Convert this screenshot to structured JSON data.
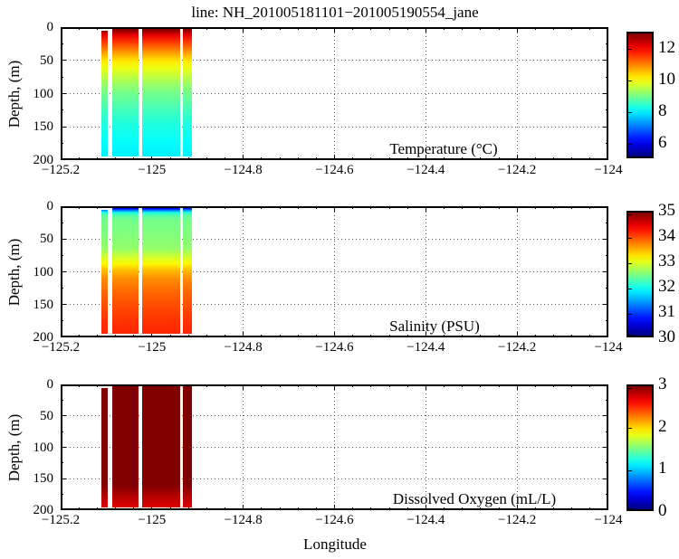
{
  "figure": {
    "title": "line: NH_201005181101−201005190554_jane",
    "xlabel": "Longitude",
    "ylabel": "Depth, (m)",
    "background_color": "#ffffff",
    "axis_color": "#000000"
  },
  "chart_data": [
    {
      "type": "heatmap",
      "series_label": "Temperature (°C)",
      "colormap": "jet",
      "clim": [
        5,
        13
      ],
      "xlim": [
        -125.2,
        -124
      ],
      "depth_lim_m": [
        0,
        200
      ],
      "xtick_values": [
        -125.2,
        -125,
        -124.8,
        -124.6,
        -124.4,
        -124.2,
        -124
      ],
      "xtick_labels": [
        "−125.2",
        "−125",
        "−124.8",
        "−124.6",
        "−124.4",
        "−124.2",
        "−124"
      ],
      "ytick_values": [
        0,
        50,
        100,
        150,
        200
      ],
      "ytick_labels": [
        "0",
        "50",
        "100",
        "150",
        "200"
      ],
      "colorbar_tick_values": [
        12,
        10,
        8,
        6
      ],
      "colorbar_tick_labels": [
        "12",
        "10",
        "8",
        "6"
      ],
      "columns_longitude": [
        [
          -125.111,
          -125.097
        ],
        [
          -125.087,
          -125.029
        ],
        [
          -125.021,
          -124.938
        ],
        [
          -124.932,
          -124.913
        ]
      ],
      "column_top_depth_m": [
        6,
        0,
        0,
        2
      ],
      "data_bottom_depth_m": 195,
      "profile_depth_value": [
        [
          0,
          13.3
        ],
        [
          5,
          12.9
        ],
        [
          12,
          12.2
        ],
        [
          22,
          11.6
        ],
        [
          32,
          11.1
        ],
        [
          42,
          10.6
        ],
        [
          52,
          10.15
        ],
        [
          62,
          9.85
        ],
        [
          75,
          9.5
        ],
        [
          88,
          9.15
        ],
        [
          100,
          8.9
        ],
        [
          120,
          8.6
        ],
        [
          145,
          8.25
        ],
        [
          170,
          8.05
        ],
        [
          195,
          7.9
        ]
      ]
    },
    {
      "type": "heatmap",
      "series_label": "Salinity (PSU)",
      "colormap": "jet",
      "clim": [
        30,
        35
      ],
      "xlim": [
        -125.2,
        -124
      ],
      "depth_lim_m": [
        0,
        200
      ],
      "xtick_values": [
        -125.2,
        -125,
        -124.8,
        -124.6,
        -124.4,
        -124.2,
        -124
      ],
      "xtick_labels": [
        "−125.2",
        "−125",
        "−124.8",
        "−124.6",
        "−124.4",
        "−124.2",
        "−124"
      ],
      "ytick_values": [
        0,
        50,
        100,
        150,
        200
      ],
      "ytick_labels": [
        "0",
        "50",
        "100",
        "150",
        "200"
      ],
      "colorbar_tick_values": [
        35,
        34,
        33,
        32,
        31,
        30
      ],
      "colorbar_tick_labels": [
        "35",
        "34",
        "33",
        "32",
        "31",
        "30"
      ],
      "columns_longitude": [
        [
          -125.111,
          -125.097
        ],
        [
          -125.087,
          -125.029
        ],
        [
          -125.021,
          -124.938
        ],
        [
          -124.932,
          -124.913
        ]
      ],
      "column_top_depth_m": [
        6,
        0,
        0,
        2
      ],
      "data_bottom_depth_m": 195,
      "profile_depth_value": [
        [
          0,
          30.35
        ],
        [
          4,
          30.7
        ],
        [
          7,
          31.4
        ],
        [
          10,
          32.0
        ],
        [
          14,
          32.3
        ],
        [
          22,
          32.45
        ],
        [
          40,
          32.5
        ],
        [
          65,
          32.6
        ],
        [
          78,
          32.9
        ],
        [
          88,
          33.15
        ],
        [
          98,
          33.45
        ],
        [
          112,
          33.7
        ],
        [
          135,
          33.9
        ],
        [
          160,
          34.05
        ],
        [
          180,
          34.15
        ],
        [
          195,
          34.2
        ]
      ]
    },
    {
      "type": "heatmap",
      "series_label": "Dissolved Oxygen (mL/L)",
      "colormap": "jet",
      "clim": [
        0,
        3
      ],
      "xlim": [
        -125.2,
        -124
      ],
      "depth_lim_m": [
        0,
        200
      ],
      "xtick_values": [
        -125.2,
        -125,
        -124.8,
        -124.6,
        -124.4,
        -124.2,
        -124
      ],
      "xtick_labels": [
        "−125.2",
        "−125",
        "−124.8",
        "−124.6",
        "−124.4",
        "−124.2",
        "−124"
      ],
      "ytick_values": [
        0,
        50,
        100,
        150,
        200
      ],
      "ytick_labels": [
        "0",
        "50",
        "100",
        "150",
        "200"
      ],
      "colorbar_tick_values": [
        3,
        2,
        1,
        0
      ],
      "colorbar_tick_labels": [
        "3",
        "2",
        "1",
        "0"
      ],
      "columns_longitude": [
        [
          -125.111,
          -125.097
        ],
        [
          -125.087,
          -125.029
        ],
        [
          -125.021,
          -124.938
        ],
        [
          -124.932,
          -124.913
        ]
      ],
      "column_top_depth_m": [
        6,
        0,
        0,
        2
      ],
      "data_bottom_depth_m": 195,
      "profile_depth_value": [
        [
          0,
          3.6
        ],
        [
          130,
          3.5
        ],
        [
          150,
          3.2
        ],
        [
          158,
          3.05
        ],
        [
          166,
          2.95
        ],
        [
          175,
          2.87
        ],
        [
          185,
          2.79
        ],
        [
          195,
          2.72
        ]
      ]
    }
  ]
}
